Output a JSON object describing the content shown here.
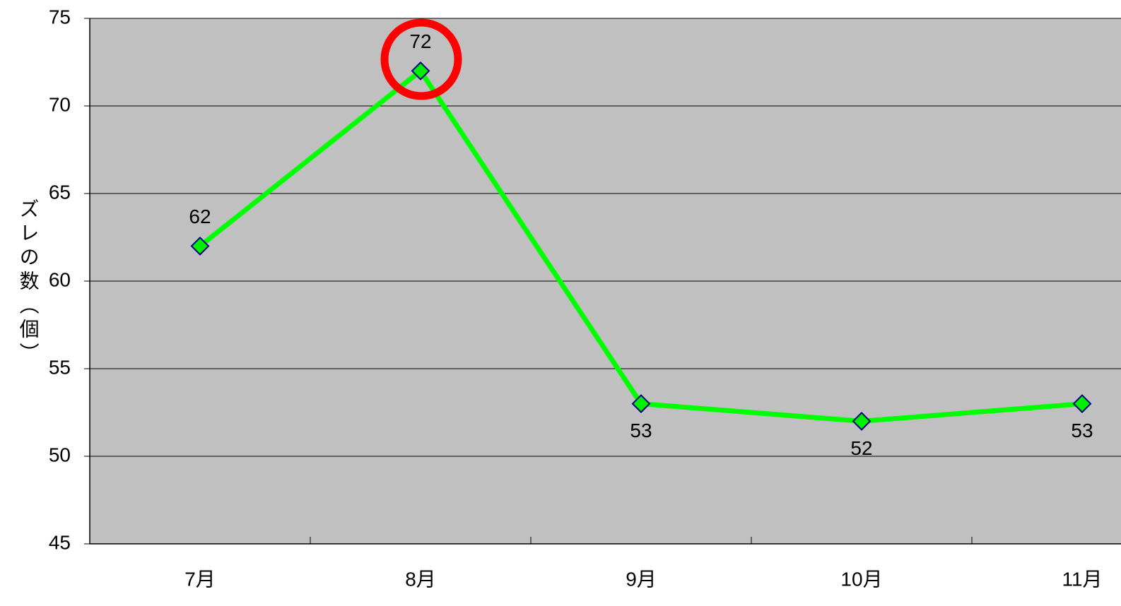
{
  "chart_data": {
    "type": "line",
    "y_label": "ズレの数（個）",
    "categories": [
      "7月",
      "8月",
      "9月",
      "10月",
      "11月"
    ],
    "values": [
      62,
      72,
      53,
      52,
      53
    ],
    "color": "#00ff00",
    "marker_color": "#00ee00",
    "ylim": [
      45,
      75
    ],
    "yticks": [
      45,
      50,
      55,
      60,
      65,
      70,
      75
    ],
    "grid": true
  }
}
